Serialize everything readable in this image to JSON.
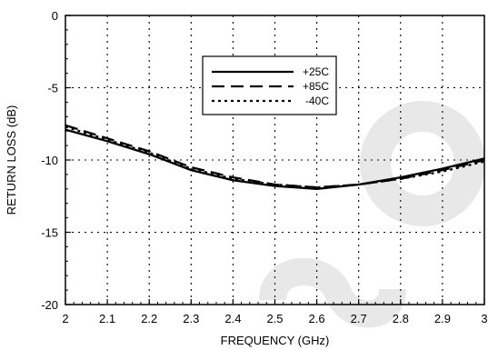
{
  "chart_data": {
    "type": "line",
    "xlabel": "FREQUENCY (GHz)",
    "ylabel": "RETURN LOSS (dB)",
    "xlim": [
      2,
      3
    ],
    "ylim": [
      -20,
      0
    ],
    "xticks": [
      "2",
      "2.1",
      "2.2",
      "2.3",
      "2.4",
      "2.5",
      "2.6",
      "2.7",
      "2.8",
      "2.9",
      "3"
    ],
    "yticks": [
      "0",
      "-5",
      "-10",
      "-15",
      "-20"
    ],
    "grid": true,
    "legend_position": "top-center",
    "series": [
      {
        "name": "+25C",
        "style": "solid",
        "color": "#000000",
        "points": [
          [
            2.0,
            -7.9
          ],
          [
            2.1,
            -8.7
          ],
          [
            2.2,
            -9.6
          ],
          [
            2.3,
            -10.7
          ],
          [
            2.4,
            -11.4
          ],
          [
            2.5,
            -11.8
          ],
          [
            2.6,
            -12.0
          ],
          [
            2.7,
            -11.7
          ],
          [
            2.8,
            -11.2
          ],
          [
            2.9,
            -10.6
          ],
          [
            3.0,
            -9.9
          ]
        ]
      },
      {
        "name": "+85C",
        "style": "dashed",
        "color": "#000000",
        "points": [
          [
            2.0,
            -7.6
          ],
          [
            2.1,
            -8.5
          ],
          [
            2.2,
            -9.4
          ],
          [
            2.3,
            -10.5
          ],
          [
            2.4,
            -11.2
          ],
          [
            2.5,
            -11.7
          ],
          [
            2.6,
            -11.9
          ],
          [
            2.7,
            -11.7
          ],
          [
            2.8,
            -11.3
          ],
          [
            2.9,
            -10.7
          ],
          [
            3.0,
            -10.0
          ]
        ]
      },
      {
        "name": "-40C",
        "style": "dotted",
        "color": "#000000",
        "points": [
          [
            2.0,
            -7.7
          ],
          [
            2.1,
            -8.6
          ],
          [
            2.2,
            -9.5
          ],
          [
            2.3,
            -10.6
          ],
          [
            2.4,
            -11.3
          ],
          [
            2.5,
            -11.7
          ],
          [
            2.6,
            -11.9
          ],
          [
            2.7,
            -11.7
          ],
          [
            2.8,
            -11.3
          ],
          [
            2.9,
            -10.8
          ],
          [
            3.0,
            -10.1
          ]
        ]
      }
    ]
  }
}
